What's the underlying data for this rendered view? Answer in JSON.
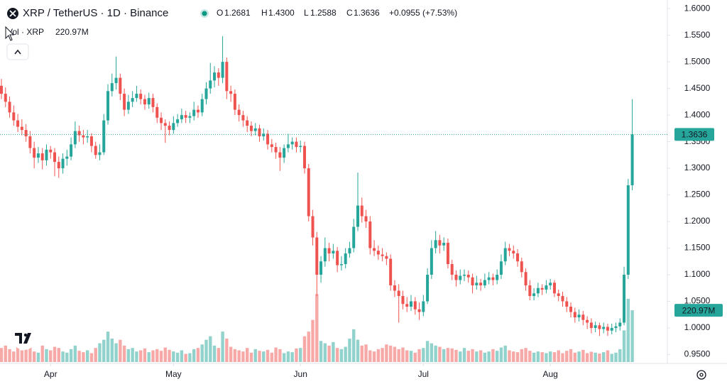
{
  "chart_data": {
    "type": "candlestick",
    "header": {
      "symbol": "XRP / TetherUS · 1D · Binance",
      "o_label": "O",
      "open": "1.2681",
      "h_label": "H",
      "high": "1.4300",
      "l_label": "L",
      "low": "1.2588",
      "c_label": "C",
      "close": "1.3636",
      "change": "+0.0955 (+7.53%)"
    },
    "volume_title": "Vol · XRP",
    "volume_label": {
      "value": 220.97,
      "label": "220.97M"
    },
    "up_color": "#26a69a",
    "down_color": "#ef5350",
    "ylim": [
      0.9333,
      1.6162
    ],
    "yticks": [
      {
        "value": 0.95,
        "label": "0.9500"
      },
      {
        "value": 1.0,
        "label": "1.0000"
      },
      {
        "value": 1.05,
        "label": "1.0500"
      },
      {
        "value": 1.1,
        "label": "1.1000"
      },
      {
        "value": 1.15,
        "label": "1.1500"
      },
      {
        "value": 1.2,
        "label": "1.2000"
      },
      {
        "value": 1.25,
        "label": "1.2500"
      },
      {
        "value": 1.3,
        "label": "1.3000"
      },
      {
        "value": 1.35,
        "label": "1.3500"
      },
      {
        "value": 1.4,
        "label": "1.4000"
      },
      {
        "value": 1.45,
        "label": "1.4500"
      },
      {
        "value": 1.5,
        "label": "1.5000"
      },
      {
        "value": 1.55,
        "label": "1.5500"
      },
      {
        "value": 1.6,
        "label": "1.6000"
      }
    ],
    "categories": [
      null,
      null,
      null,
      null,
      null,
      null,
      null,
      null,
      null,
      null,
      null,
      null,
      "Apr",
      null,
      null,
      null,
      null,
      null,
      null,
      null,
      null,
      null,
      null,
      null,
      null,
      null,
      null,
      null,
      null,
      null,
      null,
      null,
      null,
      null,
      null,
      null,
      null,
      null,
      null,
      null,
      null,
      null,
      "May",
      null,
      null,
      null,
      null,
      null,
      null,
      null,
      null,
      null,
      null,
      null,
      null,
      null,
      null,
      null,
      null,
      null,
      null,
      null,
      null,
      null,
      null,
      null,
      null,
      null,
      null,
      null,
      null,
      null,
      null,
      "Jun",
      null,
      null,
      null,
      null,
      null,
      null,
      null,
      null,
      null,
      null,
      null,
      null,
      null,
      null,
      null,
      null,
      null,
      null,
      null,
      null,
      null,
      null,
      null,
      null,
      null,
      null,
      null,
      null,
      null,
      "Jul",
      null,
      null,
      null,
      null,
      null,
      null,
      null,
      null,
      null,
      null,
      null,
      null,
      null,
      null,
      null,
      null,
      null,
      null,
      null,
      null,
      null,
      null,
      null,
      null,
      null,
      null,
      null,
      null,
      null,
      null,
      "Aug",
      null,
      null,
      null,
      null,
      null,
      null,
      null,
      null,
      null,
      null,
      null,
      null,
      null,
      null,
      null,
      null,
      null,
      null,
      null,
      null
    ],
    "ohlc": [
      [
        1.455,
        1.468,
        1.43,
        1.44
      ],
      [
        1.44,
        1.452,
        1.415,
        1.425
      ],
      [
        1.425,
        1.435,
        1.395,
        1.405
      ],
      [
        1.405,
        1.418,
        1.38,
        1.39
      ],
      [
        1.39,
        1.402,
        1.368,
        1.378
      ],
      [
        1.378,
        1.392,
        1.362,
        1.372
      ],
      [
        1.372,
        1.383,
        1.35,
        1.36
      ],
      [
        1.36,
        1.37,
        1.328,
        1.338
      ],
      [
        1.338,
        1.35,
        1.3,
        1.32
      ],
      [
        1.32,
        1.34,
        1.31,
        1.328
      ],
      [
        1.328,
        1.338,
        1.298,
        1.315
      ],
      [
        1.315,
        1.345,
        1.305,
        1.335
      ],
      [
        1.335,
        1.342,
        1.318,
        1.33
      ],
      [
        1.33,
        1.338,
        1.285,
        1.312
      ],
      [
        1.312,
        1.322,
        1.282,
        1.3
      ],
      [
        1.3,
        1.328,
        1.29,
        1.318
      ],
      [
        1.318,
        1.335,
        1.305,
        1.322
      ],
      [
        1.322,
        1.358,
        1.315,
        1.345
      ],
      [
        1.345,
        1.388,
        1.338,
        1.37
      ],
      [
        1.37,
        1.38,
        1.35,
        1.362
      ],
      [
        1.362,
        1.372,
        1.345,
        1.358
      ],
      [
        1.358,
        1.372,
        1.348,
        1.36
      ],
      [
        1.36,
        1.366,
        1.33,
        1.342
      ],
      [
        1.342,
        1.35,
        1.318,
        1.325
      ],
      [
        1.325,
        1.345,
        1.315,
        1.33
      ],
      [
        1.33,
        1.402,
        1.325,
        1.39
      ],
      [
        1.39,
        1.458,
        1.382,
        1.445
      ],
      [
        1.445,
        1.478,
        1.435,
        1.46
      ],
      [
        1.46,
        1.51,
        1.448,
        1.47
      ],
      [
        1.47,
        1.478,
        1.428,
        1.44
      ],
      [
        1.44,
        1.45,
        1.398,
        1.41
      ],
      [
        1.41,
        1.438,
        1.402,
        1.425
      ],
      [
        1.425,
        1.445,
        1.415,
        1.432
      ],
      [
        1.432,
        1.455,
        1.425,
        1.44
      ],
      [
        1.44,
        1.448,
        1.42,
        1.43
      ],
      [
        1.43,
        1.438,
        1.41,
        1.42
      ],
      [
        1.42,
        1.442,
        1.412,
        1.432
      ],
      [
        1.432,
        1.44,
        1.405,
        1.415
      ],
      [
        1.415,
        1.422,
        1.385,
        1.395
      ],
      [
        1.395,
        1.405,
        1.372,
        1.385
      ],
      [
        1.385,
        1.392,
        1.348,
        1.38
      ],
      [
        1.38,
        1.388,
        1.362,
        1.372
      ],
      [
        1.372,
        1.398,
        1.365,
        1.385
      ],
      [
        1.385,
        1.402,
        1.378,
        1.392
      ],
      [
        1.392,
        1.412,
        1.385,
        1.4
      ],
      [
        1.4,
        1.408,
        1.385,
        1.395
      ],
      [
        1.395,
        1.405,
        1.385,
        1.398
      ],
      [
        1.398,
        1.425,
        1.39,
        1.41
      ],
      [
        1.41,
        1.418,
        1.395,
        1.405
      ],
      [
        1.405,
        1.44,
        1.398,
        1.43
      ],
      [
        1.43,
        1.462,
        1.42,
        1.45
      ],
      [
        1.45,
        1.498,
        1.44,
        1.465
      ],
      [
        1.465,
        1.492,
        1.452,
        1.48
      ],
      [
        1.48,
        1.488,
        1.455,
        1.47
      ],
      [
        1.47,
        1.548,
        1.46,
        1.5
      ],
      [
        1.5,
        1.508,
        1.43,
        1.445
      ],
      [
        1.445,
        1.455,
        1.425,
        1.44
      ],
      [
        1.44,
        1.448,
        1.4,
        1.41
      ],
      [
        1.41,
        1.42,
        1.388,
        1.4
      ],
      [
        1.4,
        1.408,
        1.378,
        1.39
      ],
      [
        1.39,
        1.398,
        1.368,
        1.38
      ],
      [
        1.38,
        1.388,
        1.36,
        1.37
      ],
      [
        1.37,
        1.385,
        1.362,
        1.375
      ],
      [
        1.375,
        1.382,
        1.35,
        1.36
      ],
      [
        1.36,
        1.375,
        1.352,
        1.365
      ],
      [
        1.365,
        1.372,
        1.335,
        1.345
      ],
      [
        1.345,
        1.355,
        1.33,
        1.34
      ],
      [
        1.34,
        1.348,
        1.318,
        1.33
      ],
      [
        1.33,
        1.34,
        1.295,
        1.32
      ],
      [
        1.32,
        1.345,
        1.31,
        1.338
      ],
      [
        1.338,
        1.365,
        1.33,
        1.345
      ],
      [
        1.345,
        1.358,
        1.335,
        1.35
      ],
      [
        1.35,
        1.358,
        1.33,
        1.34
      ],
      [
        1.34,
        1.352,
        1.33,
        1.342
      ],
      [
        1.342,
        1.35,
        1.29,
        1.3
      ],
      [
        1.3,
        1.308,
        1.2,
        1.21
      ],
      [
        1.21,
        1.222,
        1.155,
        1.17
      ],
      [
        1.17,
        1.18,
        1.06,
        1.1
      ],
      [
        1.1,
        1.135,
        1.085,
        1.125
      ],
      [
        1.125,
        1.17,
        1.115,
        1.15
      ],
      [
        1.15,
        1.16,
        1.125,
        1.14
      ],
      [
        1.14,
        1.158,
        1.13,
        1.145
      ],
      [
        1.145,
        1.152,
        1.105,
        1.118
      ],
      [
        1.118,
        1.135,
        1.108,
        1.12
      ],
      [
        1.12,
        1.15,
        1.112,
        1.14
      ],
      [
        1.14,
        1.162,
        1.132,
        1.15
      ],
      [
        1.15,
        1.205,
        1.142,
        1.19
      ],
      [
        1.19,
        1.292,
        1.182,
        1.23
      ],
      [
        1.23,
        1.245,
        1.198,
        1.21
      ],
      [
        1.21,
        1.222,
        1.188,
        1.2
      ],
      [
        1.2,
        1.21,
        1.138,
        1.15
      ],
      [
        1.15,
        1.165,
        1.135,
        1.145
      ],
      [
        1.145,
        1.155,
        1.128,
        1.138
      ],
      [
        1.138,
        1.15,
        1.125,
        1.135
      ],
      [
        1.135,
        1.142,
        1.118,
        1.13
      ],
      [
        1.13,
        1.138,
        1.07,
        1.08
      ],
      [
        1.08,
        1.09,
        1.058,
        1.07
      ],
      [
        1.07,
        1.082,
        1.01,
        1.06
      ],
      [
        1.06,
        1.07,
        1.035,
        1.045
      ],
      [
        1.045,
        1.058,
        1.03,
        1.04
      ],
      [
        1.04,
        1.062,
        1.032,
        1.05
      ],
      [
        1.05,
        1.058,
        1.025,
        1.035
      ],
      [
        1.035,
        1.048,
        1.015,
        1.03
      ],
      [
        1.03,
        1.062,
        1.022,
        1.05
      ],
      [
        1.05,
        1.112,
        1.045,
        1.1
      ],
      [
        1.1,
        1.165,
        1.092,
        1.15
      ],
      [
        1.15,
        1.182,
        1.14,
        1.165
      ],
      [
        1.165,
        1.175,
        1.14,
        1.155
      ],
      [
        1.155,
        1.17,
        1.145,
        1.16
      ],
      [
        1.16,
        1.168,
        1.112,
        1.12
      ],
      [
        1.12,
        1.128,
        1.09,
        1.1
      ],
      [
        1.1,
        1.108,
        1.078,
        1.09
      ],
      [
        1.09,
        1.11,
        1.082,
        1.098
      ],
      [
        1.098,
        1.11,
        1.088,
        1.1
      ],
      [
        1.1,
        1.108,
        1.085,
        1.095
      ],
      [
        1.095,
        1.102,
        1.065,
        1.08
      ],
      [
        1.08,
        1.098,
        1.072,
        1.085
      ],
      [
        1.085,
        1.092,
        1.07,
        1.08
      ],
      [
        1.08,
        1.102,
        1.075,
        1.09
      ],
      [
        1.09,
        1.105,
        1.082,
        1.095
      ],
      [
        1.095,
        1.102,
        1.08,
        1.09
      ],
      [
        1.09,
        1.11,
        1.082,
        1.1
      ],
      [
        1.1,
        1.138,
        1.092,
        1.125
      ],
      [
        1.125,
        1.162,
        1.118,
        1.15
      ],
      [
        1.15,
        1.158,
        1.135,
        1.145
      ],
      [
        1.145,
        1.155,
        1.13,
        1.14
      ],
      [
        1.14,
        1.148,
        1.115,
        1.125
      ],
      [
        1.125,
        1.132,
        1.095,
        1.105
      ],
      [
        1.105,
        1.112,
        1.07,
        1.08
      ],
      [
        1.08,
        1.09,
        1.052,
        1.06
      ],
      [
        1.06,
        1.075,
        1.052,
        1.065
      ],
      [
        1.065,
        1.085,
        1.058,
        1.075
      ],
      [
        1.075,
        1.082,
        1.062,
        1.072
      ],
      [
        1.072,
        1.09,
        1.065,
        1.08
      ],
      [
        1.08,
        1.092,
        1.072,
        1.085
      ],
      [
        1.085,
        1.09,
        1.058,
        1.065
      ],
      [
        1.065,
        1.072,
        1.05,
        1.06
      ],
      [
        1.06,
        1.068,
        1.04,
        1.05
      ],
      [
        1.05,
        1.058,
        1.03,
        1.04
      ],
      [
        1.04,
        1.048,
        1.02,
        1.03
      ],
      [
        1.03,
        1.038,
        1.01,
        1.02
      ],
      [
        1.02,
        1.035,
        1.012,
        1.025
      ],
      [
        1.025,
        1.032,
        1.005,
        1.015
      ],
      [
        1.015,
        1.022,
        0.998,
        1.01
      ],
      [
        1.01,
        1.018,
        0.99,
        1.0
      ],
      [
        1.0,
        1.012,
        0.992,
        1.005
      ],
      [
        1.005,
        1.01,
        0.985,
        0.998
      ],
      [
        0.998,
        1.01,
        0.99,
        1.002
      ],
      [
        1.002,
        1.008,
        0.985,
        0.995
      ],
      [
        0.995,
        1.008,
        0.988,
        1.0
      ],
      [
        1.0,
        1.01,
        0.992,
        1.003
      ],
      [
        1.003,
        1.018,
        0.995,
        1.01
      ],
      [
        1.01,
        1.115,
        1.005,
        1.1
      ],
      [
        1.1,
        1.28,
        1.092,
        1.2681
      ],
      [
        1.2681,
        1.43,
        1.2588,
        1.3636
      ]
    ],
    "volume": [
      60,
      70,
      55,
      45,
      65,
      50,
      60,
      75,
      45,
      40,
      70,
      55,
      50,
      65,
      60,
      45,
      40,
      55,
      70,
      48,
      42,
      50,
      38,
      60,
      80,
      95,
      130,
      100,
      80,
      95,
      70,
      55,
      60,
      45,
      50,
      58,
      42,
      50,
      55,
      48,
      62,
      52,
      45,
      40,
      50,
      35,
      38,
      55,
      60,
      75,
      95,
      110,
      70,
      60,
      130,
      100,
      65,
      55,
      50,
      45,
      60,
      40,
      55,
      48,
      45,
      52,
      40,
      62,
      55,
      38,
      45,
      42,
      58,
      60,
      110,
      130,
      180,
      290,
      90,
      80,
      70,
      85,
      60,
      55,
      65,
      100,
      140,
      95,
      70,
      75,
      50,
      45,
      55,
      60,
      75,
      70,
      65,
      55,
      62,
      50,
      48,
      40,
      55,
      60,
      90,
      80,
      70,
      65,
      55,
      60,
      58,
      52,
      45,
      60,
      48,
      55,
      45,
      50,
      40,
      45,
      55,
      48,
      62,
      70,
      50,
      45,
      42,
      55,
      60,
      48,
      40,
      45,
      42,
      38,
      45,
      42,
      50,
      38,
      48,
      55,
      40,
      45,
      52,
      38,
      44,
      40,
      36,
      42,
      50,
      35,
      40,
      55,
      135,
      270,
      220.97
    ]
  }
}
